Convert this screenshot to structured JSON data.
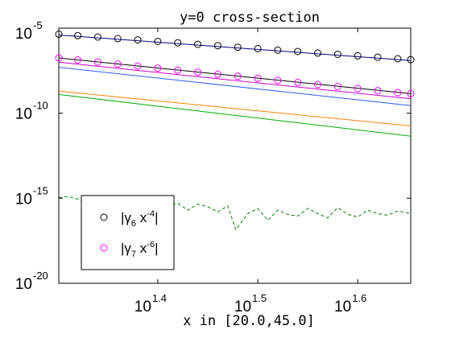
{
  "chart_data": {
    "type": "line",
    "title": "y=0 cross-section",
    "xlabel": "x in [20.0,45.0]",
    "ylabel": "",
    "x_scale": "log",
    "y_scale": "log",
    "xlim_log10": [
      1.301,
      1.653
    ],
    "ylim_log10": [
      -20,
      -5
    ],
    "x_ticks": [
      {
        "base": "10",
        "exp": "1.4",
        "log10": 1.4
      },
      {
        "base": "10",
        "exp": "1.5",
        "log10": 1.5
      },
      {
        "base": "10",
        "exp": "1.6",
        "log10": 1.6
      }
    ],
    "y_ticks": [
      {
        "base": "10",
        "exp": "-5",
        "log10": -5
      },
      {
        "base": "10",
        "exp": "-10",
        "log10": -10
      },
      {
        "base": "10",
        "exp": "-15",
        "log10": -15
      },
      {
        "base": "10",
        "exp": "-20",
        "log10": -20
      }
    ],
    "grid": false,
    "legend_position": "lower-left",
    "legend": [
      {
        "marker": "circle",
        "color": "#000000",
        "prefix": "|γ",
        "sub": "6",
        "mid": " x",
        "sup": "-4",
        "suffix": "|"
      },
      {
        "marker": "circle",
        "color": "#ff00ff",
        "prefix": "|γ",
        "sub": "7",
        "mid": " x",
        "sup": "-6",
        "suffix": "|"
      }
    ],
    "series": [
      {
        "color": "#000080",
        "style": "solid",
        "x_log10": [
          1.301,
          1.653
        ],
        "y_log10": [
          -5.4,
          -6.9
        ]
      },
      {
        "color": "#000000",
        "style": "solid",
        "x_log10": [
          1.301,
          1.653
        ],
        "y_log10": [
          -6.75,
          -8.85
        ]
      },
      {
        "color": "#2a5cff",
        "style": "solid",
        "x_log10": [
          1.301,
          1.653
        ],
        "y_log10": [
          -7.3,
          -9.55
        ]
      },
      {
        "color": "#cc00cc",
        "style": "solid",
        "x_log10": [
          1.301,
          1.653
        ],
        "y_log10": [
          -7.0,
          -9.15
        ]
      },
      {
        "color": "#ff8000",
        "style": "solid",
        "x_log10": [
          1.301,
          1.653
        ],
        "y_log10": [
          -8.7,
          -10.75
        ]
      },
      {
        "color": "#00aa00",
        "style": "solid",
        "x_log10": [
          1.301,
          1.653
        ],
        "y_log10": [
          -8.9,
          -11.35
        ]
      },
      {
        "color": "#008000",
        "style": "dashed",
        "x_log10": [
          1.301,
          1.31,
          1.32,
          1.33,
          1.34,
          1.35,
          1.36,
          1.37,
          1.38,
          1.39,
          1.4,
          1.41,
          1.42,
          1.43,
          1.44,
          1.45,
          1.46,
          1.47,
          1.478,
          1.49,
          1.5,
          1.51,
          1.52,
          1.53,
          1.54,
          1.55,
          1.56,
          1.57,
          1.58,
          1.59,
          1.6,
          1.61,
          1.62,
          1.63,
          1.64,
          1.653
        ],
        "y_log10": [
          -14.95,
          -14.9,
          -15.05,
          -15.3,
          -15.2,
          -15.45,
          -15.25,
          -15.6,
          -15.35,
          -15.5,
          -15.9,
          -15.45,
          -15.3,
          -15.7,
          -15.35,
          -15.5,
          -15.8,
          -15.45,
          -16.85,
          -15.9,
          -15.6,
          -16.3,
          -15.7,
          -15.95,
          -16.05,
          -15.6,
          -15.9,
          -16.15,
          -15.55,
          -15.95,
          -16.1,
          -15.7,
          -15.9,
          -16.0,
          -15.75,
          -15.9
        ]
      }
    ],
    "markers": [
      {
        "name": "|γ6 x^-4|",
        "color": "#000000",
        "x_log10": [
          1.301,
          1.32,
          1.34,
          1.36,
          1.38,
          1.4,
          1.42,
          1.44,
          1.46,
          1.48,
          1.5,
          1.52,
          1.54,
          1.56,
          1.58,
          1.6,
          1.62,
          1.64,
          1.653
        ],
        "y_log10": [
          -5.35,
          -5.44,
          -5.52,
          -5.61,
          -5.69,
          -5.78,
          -5.86,
          -5.95,
          -6.03,
          -6.12,
          -6.2,
          -6.29,
          -6.37,
          -6.46,
          -6.54,
          -6.63,
          -6.71,
          -6.8,
          -6.85
        ]
      },
      {
        "name": "|γ7 x^-6|",
        "color": "#ff00ff",
        "x_log10": [
          1.301,
          1.32,
          1.34,
          1.36,
          1.38,
          1.4,
          1.42,
          1.44,
          1.46,
          1.48,
          1.5,
          1.52,
          1.54,
          1.56,
          1.58,
          1.6,
          1.62,
          1.64,
          1.653
        ],
        "y_log10": [
          -6.75,
          -6.87,
          -6.99,
          -7.11,
          -7.23,
          -7.35,
          -7.47,
          -7.59,
          -7.71,
          -7.83,
          -7.95,
          -8.07,
          -8.19,
          -8.31,
          -8.43,
          -8.55,
          -8.67,
          -8.79,
          -8.85
        ]
      }
    ]
  }
}
